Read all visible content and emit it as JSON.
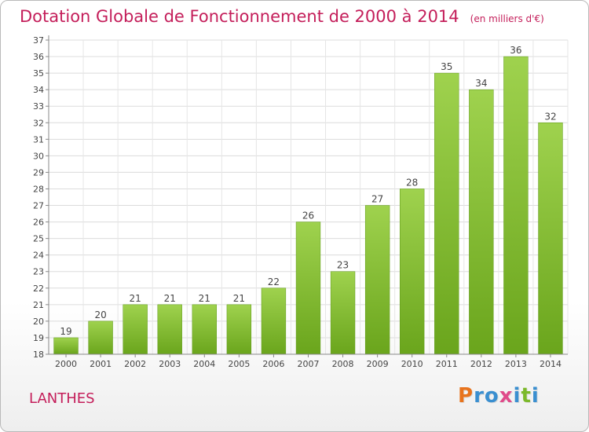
{
  "chart_data": {
    "type": "bar",
    "title": "Dotation Globale de Fonctionnement de 2000 à 2014",
    "subtitle": "(en milliers d'€)",
    "categories": [
      "2000",
      "2001",
      "2002",
      "2003",
      "2004",
      "2005",
      "2006",
      "2007",
      "2008",
      "2009",
      "2010",
      "2011",
      "2012",
      "2013",
      "2014"
    ],
    "values": [
      19,
      20,
      21,
      21,
      21,
      21,
      22,
      26,
      23,
      27,
      28,
      35,
      34,
      36,
      32
    ],
    "ylim": [
      18,
      37
    ],
    "yticks": [
      18,
      19,
      20,
      21,
      22,
      23,
      24,
      25,
      26,
      27,
      28,
      29,
      30,
      31,
      32,
      33,
      34,
      35,
      36,
      37
    ],
    "grid": true,
    "colors": {
      "bar_top": "#9fd24e",
      "bar_bottom": "#6aa51c",
      "title": "#c41e5a"
    }
  },
  "footer": {
    "commune": "LANTHES"
  },
  "logo": {
    "letters": [
      {
        "char": "P",
        "color": "#e8731c"
      },
      {
        "char": "r",
        "color": "#3a8fd0"
      },
      {
        "char": "o",
        "color": "#3a8fd0"
      },
      {
        "char": "x",
        "color": "#e04a8a"
      },
      {
        "char": "i",
        "color": "#3a8fd0"
      },
      {
        "char": "t",
        "color": "#7cb92a"
      },
      {
        "char": "i",
        "color": "#3a8fd0"
      }
    ]
  }
}
